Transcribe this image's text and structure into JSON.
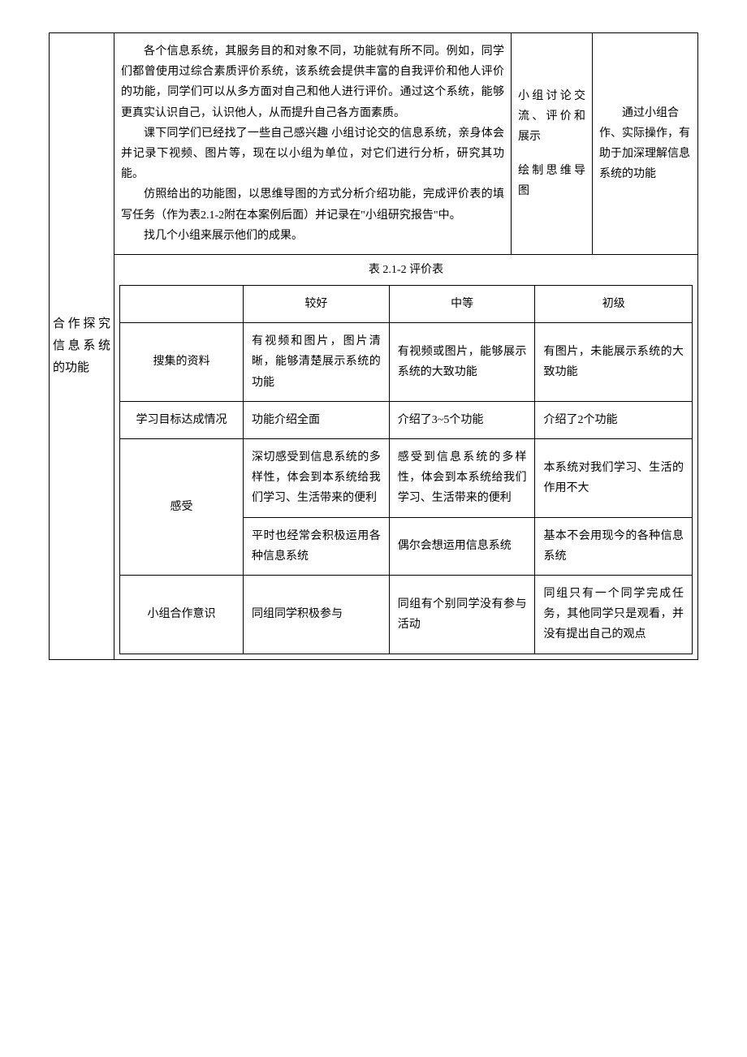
{
  "row_label": "合作探究信息系统的功能",
  "main_text": {
    "p1": "各个信息系统，其服务目的和对象不同，功能就有所不同。例如，同学们都曾使用过综合素质评价系统，该系统会提供丰富的自我评价和他人评价的功能，同学们可以从多方面对自己和他人进行评价。通过这个系统，能够更真实认识自己，认识他人，从而提升自己各方面素质。",
    "p2": "课下同学们已经找了一些自己感兴趣 小组讨论交的信息系统，亲身体会并记录下视频、图片等，现在以小组为单位，对它们进行分析，研究其功能。",
    "p3": "仿照给出的功能图，以思维导图的方式分析介绍功能，完成评价表的填写任务（作为表2.1-2附在本案例后面）并记录在\"小组研究报告\"中。",
    "p4": "找几个小组来展示他们的成果。"
  },
  "activity": {
    "a1": "小组讨论交流、评价和展示",
    "a2": "绘制思维导图"
  },
  "design_intent": "通过小组合作、实际操作，有助于加深理解信息系统的功能",
  "eval": {
    "title": "表 2.1-2 评价表",
    "headers": {
      "blank": "",
      "good": "较好",
      "mid": "中等",
      "beginner": "初级"
    },
    "rows": [
      {
        "label": "搜集的资料",
        "good": "有视频和图片，图片清晰，能够清楚展示系统的功能",
        "mid": "有视频或图片，能够展示系统的大致功能",
        "beginner": "有图片，未能展示系统的大致功能"
      },
      {
        "label": "学习目标达成情况",
        "good": "功能介绍全面",
        "mid": "介绍了3~5个功能",
        "beginner": "介绍了2个功能"
      },
      {
        "label": "感受",
        "good": "深切感受到信息系统的多样性，体会到本系统给我们学习、生活带来的便利",
        "mid": "感受到信息系统的多样性，体会到本系统给我们学习、生活带来的便利",
        "beginner": "本系统对我们学习、生活的作用不大"
      },
      {
        "label": "",
        "good": "平时也经常会积极运用各种信息系统",
        "mid": "偶尔会想运用信息系统",
        "beginner": "基本不会用现今的各种信息系统"
      },
      {
        "label": "小组合作意识",
        "good": "同组同学积极参与",
        "mid": "同组有个别同学没有参与活动",
        "beginner": "同组只有一个同学完成任务，其他同学只是观看，并没有提出自己的观点"
      }
    ]
  }
}
